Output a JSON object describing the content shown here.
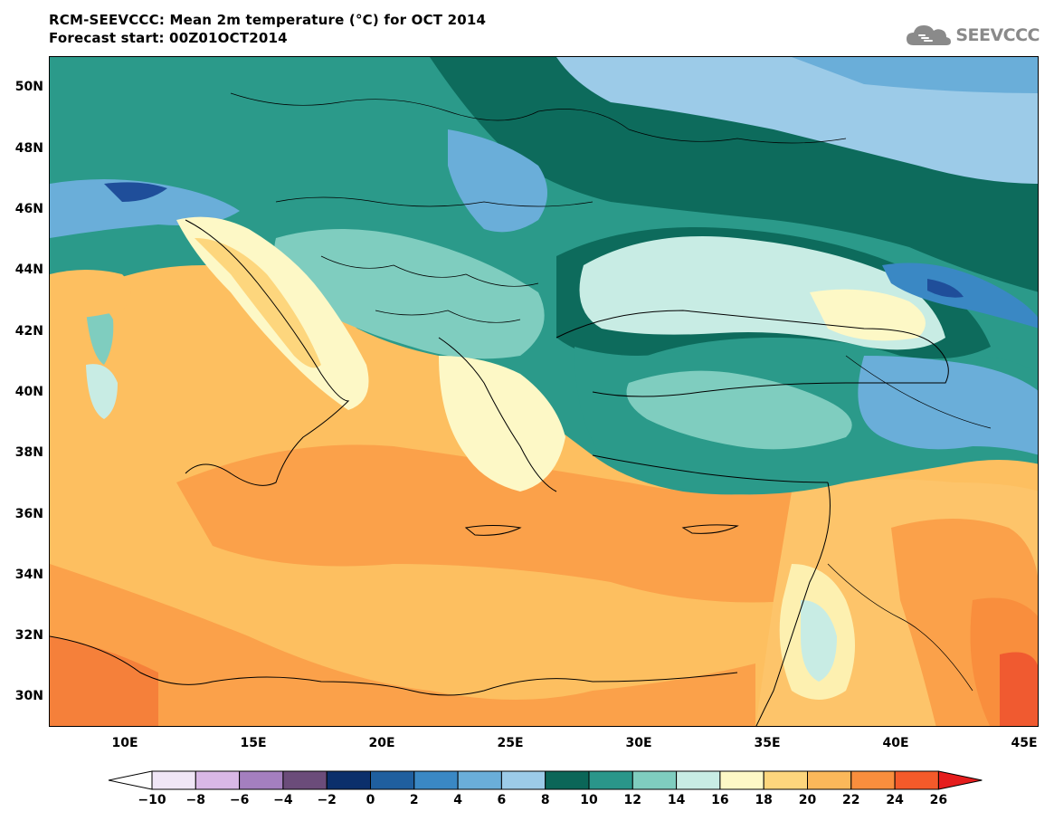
{
  "title": {
    "line1": "RCM-SEEVCCC: Mean 2m temperature (°C) for OCT 2014",
    "line2": "Forecast start: 00Z01OCT2014"
  },
  "logo": {
    "text": "SEEVCCC",
    "icon": "cloud-icon"
  },
  "map": {
    "lon_range": [
      7,
      45.5
    ],
    "lat_range": [
      29,
      51
    ],
    "lat_ticks": [
      "30N",
      "32N",
      "34N",
      "36N",
      "38N",
      "40N",
      "42N",
      "44N",
      "46N",
      "48N",
      "50N"
    ],
    "lon_ticks": [
      "10E",
      "15E",
      "20E",
      "25E",
      "30E",
      "35E",
      "40E",
      "45E"
    ],
    "colors": {
      "sea": "#fdbf60",
      "warm_land": "#fca048",
      "hot": "#f05a30",
      "mid_green": "#2b9a8a",
      "dark_green": "#0d6b5c",
      "light_teal": "#7ecec0",
      "pale": "#c9ece6",
      "light_blue": "#8fc3e6",
      "blue": "#3a8ac8",
      "dark_blue": "#1f4e9a",
      "cream": "#fdf6c0"
    }
  },
  "colorbar": {
    "labels": [
      "−10",
      "−8",
      "−6",
      "−4",
      "−2",
      "0",
      "2",
      "4",
      "6",
      "8",
      "10",
      "12",
      "14",
      "16",
      "18",
      "20",
      "22",
      "24",
      "26"
    ],
    "colors": [
      "#f0e6f6",
      "#d9b8e6",
      "#a47fbf",
      "#6b4c7a",
      "#0b2f6b",
      "#1f5f9f",
      "#3a88c4",
      "#6aaed9",
      "#9ccbe8",
      "#0b6658",
      "#2a968a",
      "#7fcdbf",
      "#c8ece4",
      "#fdf8c6",
      "#fdd67d",
      "#fbb85a",
      "#f98e3d",
      "#f45a2a"
    ],
    "low_end_color": "#ffffff",
    "high_end_color": "#e51d1d"
  }
}
